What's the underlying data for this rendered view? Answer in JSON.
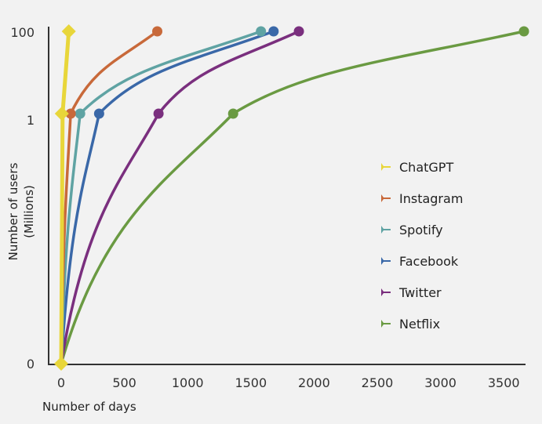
{
  "chart_data": {
    "type": "line",
    "title": "",
    "xlabel": "Number of days",
    "ylabel_lines": [
      "Number of users",
      "(Millions)"
    ],
    "x_ticks": [
      "0",
      "500",
      "1000",
      "1500",
      "2000",
      "2500",
      "3000",
      "3500"
    ],
    "x_tick_values": [
      0,
      500,
      1000,
      1500,
      2000,
      2500,
      3000,
      3500
    ],
    "y_ticks": [
      "0",
      "1",
      "100"
    ],
    "y_tick_values": [
      0,
      1,
      100
    ],
    "xlim": [
      0,
      3700
    ],
    "grid": false,
    "legend_position": "center-right",
    "series": [
      {
        "name": "ChatGPT",
        "color": "#e8d63a",
        "marker": "diamond",
        "points": [
          [
            0,
            0
          ],
          [
            5,
            1
          ],
          [
            60,
            100
          ]
        ]
      },
      {
        "name": "Instagram",
        "color": "#c8693a",
        "marker": "circle",
        "points": [
          [
            0,
            0
          ],
          [
            75,
            1
          ],
          [
            760,
            100
          ]
        ]
      },
      {
        "name": "Spotify",
        "color": "#5fa3a3",
        "marker": "circle",
        "points": [
          [
            0,
            0
          ],
          [
            150,
            1
          ],
          [
            1580,
            100
          ]
        ]
      },
      {
        "name": "Facebook",
        "color": "#3a68a8",
        "marker": "circle",
        "points": [
          [
            0,
            0
          ],
          [
            300,
            1
          ],
          [
            1680,
            100
          ]
        ]
      },
      {
        "name": "Twitter",
        "color": "#7a2f7e",
        "marker": "circle",
        "points": [
          [
            0,
            0
          ],
          [
            770,
            1
          ],
          [
            1880,
            100
          ]
        ]
      },
      {
        "name": "Netflix",
        "color": "#6a9a42",
        "marker": "circle",
        "points": [
          [
            0,
            0
          ],
          [
            1360,
            1
          ],
          [
            3660,
            100
          ]
        ]
      }
    ]
  }
}
